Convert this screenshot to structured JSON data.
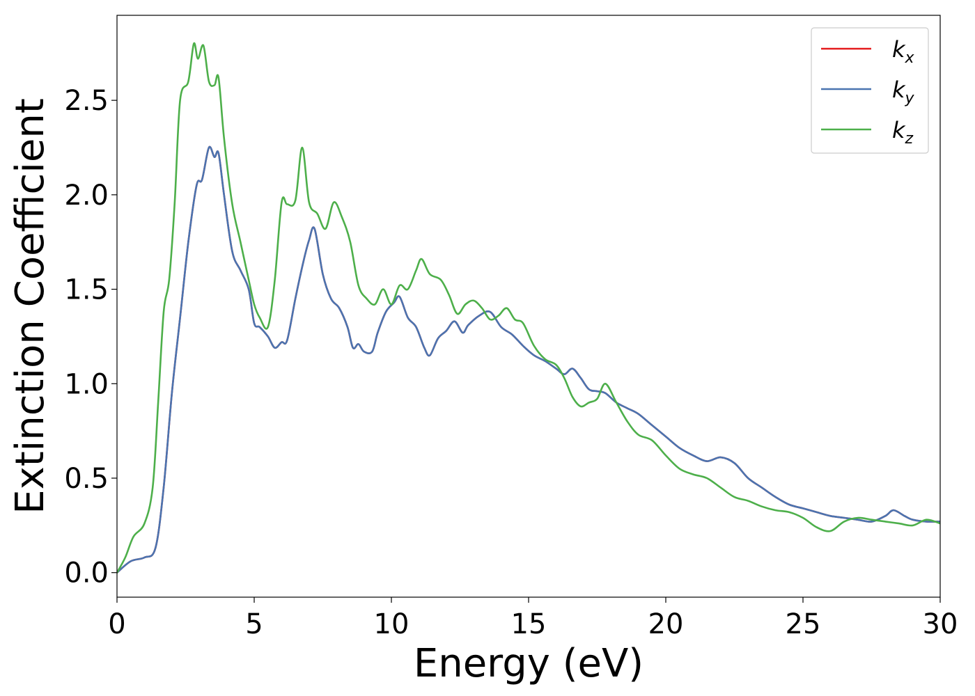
{
  "chart_data": {
    "type": "line",
    "title": "",
    "xlabel": "Energy (eV)",
    "ylabel": "Extinction Coefficient",
    "xlim": [
      0,
      30
    ],
    "ylim": [
      -0.13,
      2.95
    ],
    "xticks": [
      0,
      5,
      10,
      15,
      20,
      25,
      30
    ],
    "xtick_labels": [
      "0",
      "5",
      "10",
      "15",
      "20",
      "25",
      "30"
    ],
    "yticks": [
      0.0,
      0.5,
      1.0,
      1.5,
      2.0,
      2.5
    ],
    "ytick_labels": [
      "0.0",
      "0.5",
      "1.0",
      "1.5",
      "2.0",
      "2.5"
    ],
    "grid": false,
    "legend": {
      "placement": "top-right",
      "entries": [
        {
          "base": "k",
          "sub": "x",
          "color": "#e41a1c"
        },
        {
          "base": "k",
          "sub": "y",
          "color": "#4a74b0"
        },
        {
          "base": "k",
          "sub": "z",
          "color": "#4daf4a"
        }
      ]
    },
    "series": [
      {
        "name": "kx",
        "color": "#e41a1c",
        "x": [
          0,
          0.5,
          1.0,
          1.4,
          1.7,
          2.0,
          2.3,
          2.6,
          2.9,
          3.1,
          3.35,
          3.55,
          3.7,
          3.9,
          4.2,
          4.5,
          4.8,
          5.0,
          5.2,
          5.5,
          5.75,
          6.0,
          6.2,
          6.5,
          6.8,
          7.0,
          7.2,
          7.5,
          7.8,
          8.1,
          8.4,
          8.6,
          8.8,
          9.0,
          9.3,
          9.5,
          9.8,
          10.1,
          10.3,
          10.6,
          10.9,
          11.2,
          11.4,
          11.7,
          12.0,
          12.3,
          12.6,
          12.8,
          13.2,
          13.6,
          14.0,
          14.4,
          14.8,
          15.2,
          15.6,
          16.0,
          16.3,
          16.6,
          16.9,
          17.2,
          17.5,
          17.8,
          18.2,
          18.6,
          19.0,
          19.5,
          20.0,
          20.5,
          21.0,
          21.5,
          22.0,
          22.5,
          23.0,
          23.5,
          24.0,
          24.5,
          25.0,
          25.5,
          26.0,
          26.5,
          27.0,
          27.5,
          28.0,
          28.3,
          28.7,
          29.0,
          29.5,
          30.0
        ],
        "y": [
          0.0,
          0.06,
          0.08,
          0.13,
          0.45,
          0.95,
          1.35,
          1.75,
          2.05,
          2.08,
          2.25,
          2.2,
          2.22,
          2.0,
          1.7,
          1.6,
          1.5,
          1.32,
          1.3,
          1.25,
          1.19,
          1.22,
          1.23,
          1.45,
          1.65,
          1.76,
          1.82,
          1.58,
          1.45,
          1.4,
          1.3,
          1.19,
          1.21,
          1.17,
          1.17,
          1.27,
          1.38,
          1.43,
          1.46,
          1.35,
          1.3,
          1.19,
          1.15,
          1.24,
          1.28,
          1.33,
          1.27,
          1.31,
          1.36,
          1.38,
          1.3,
          1.26,
          1.2,
          1.15,
          1.12,
          1.08,
          1.05,
          1.08,
          1.03,
          0.97,
          0.96,
          0.95,
          0.9,
          0.87,
          0.84,
          0.78,
          0.72,
          0.66,
          0.62,
          0.59,
          0.61,
          0.58,
          0.5,
          0.45,
          0.4,
          0.36,
          0.34,
          0.32,
          0.3,
          0.29,
          0.28,
          0.27,
          0.3,
          0.33,
          0.3,
          0.28,
          0.27,
          0.27
        ]
      },
      {
        "name": "ky",
        "color": "#4a74b0",
        "x": [
          0,
          0.5,
          1.0,
          1.4,
          1.7,
          2.0,
          2.3,
          2.6,
          2.9,
          3.1,
          3.35,
          3.55,
          3.7,
          3.9,
          4.2,
          4.5,
          4.8,
          5.0,
          5.2,
          5.5,
          5.75,
          6.0,
          6.2,
          6.5,
          6.8,
          7.0,
          7.2,
          7.5,
          7.8,
          8.1,
          8.4,
          8.6,
          8.8,
          9.0,
          9.3,
          9.5,
          9.8,
          10.1,
          10.3,
          10.6,
          10.9,
          11.2,
          11.4,
          11.7,
          12.0,
          12.3,
          12.6,
          12.8,
          13.2,
          13.6,
          14.0,
          14.4,
          14.8,
          15.2,
          15.6,
          16.0,
          16.3,
          16.6,
          16.9,
          17.2,
          17.5,
          17.8,
          18.2,
          18.6,
          19.0,
          19.5,
          20.0,
          20.5,
          21.0,
          21.5,
          22.0,
          22.5,
          23.0,
          23.5,
          24.0,
          24.5,
          25.0,
          25.5,
          26.0,
          26.5,
          27.0,
          27.5,
          28.0,
          28.3,
          28.7,
          29.0,
          29.5,
          30.0
        ],
        "y": [
          0.0,
          0.06,
          0.08,
          0.13,
          0.45,
          0.95,
          1.35,
          1.75,
          2.05,
          2.08,
          2.25,
          2.2,
          2.22,
          2.0,
          1.7,
          1.6,
          1.5,
          1.32,
          1.3,
          1.25,
          1.19,
          1.22,
          1.23,
          1.45,
          1.65,
          1.76,
          1.82,
          1.58,
          1.45,
          1.4,
          1.3,
          1.19,
          1.21,
          1.17,
          1.17,
          1.27,
          1.38,
          1.43,
          1.46,
          1.35,
          1.3,
          1.19,
          1.15,
          1.24,
          1.28,
          1.33,
          1.27,
          1.31,
          1.36,
          1.38,
          1.3,
          1.26,
          1.2,
          1.15,
          1.12,
          1.08,
          1.05,
          1.08,
          1.03,
          0.97,
          0.96,
          0.95,
          0.9,
          0.87,
          0.84,
          0.78,
          0.72,
          0.66,
          0.62,
          0.59,
          0.61,
          0.58,
          0.5,
          0.45,
          0.4,
          0.36,
          0.34,
          0.32,
          0.3,
          0.29,
          0.28,
          0.27,
          0.3,
          0.33,
          0.3,
          0.28,
          0.27,
          0.27
        ]
      },
      {
        "name": "kz",
        "color": "#4daf4a",
        "x": [
          0,
          0.3,
          0.6,
          1.0,
          1.3,
          1.5,
          1.7,
          1.9,
          2.1,
          2.3,
          2.6,
          2.8,
          2.95,
          3.15,
          3.35,
          3.55,
          3.7,
          3.9,
          4.2,
          4.5,
          4.8,
          5.0,
          5.2,
          5.5,
          5.75,
          6.0,
          6.2,
          6.5,
          6.75,
          7.0,
          7.3,
          7.6,
          7.9,
          8.2,
          8.5,
          8.8,
          9.1,
          9.4,
          9.7,
          10.0,
          10.3,
          10.6,
          10.9,
          11.1,
          11.4,
          11.8,
          12.1,
          12.4,
          12.7,
          13.0,
          13.3,
          13.6,
          13.9,
          14.2,
          14.5,
          14.8,
          15.2,
          15.6,
          16.0,
          16.3,
          16.6,
          16.9,
          17.2,
          17.5,
          17.8,
          18.2,
          18.6,
          19.0,
          19.5,
          20.0,
          20.5,
          21.0,
          21.5,
          22.0,
          22.5,
          23.0,
          23.5,
          24.0,
          24.5,
          25.0,
          25.5,
          26.0,
          26.5,
          27.0,
          27.5,
          28.0,
          28.5,
          29.0,
          29.5,
          30.0
        ],
        "y": [
          0.0,
          0.08,
          0.19,
          0.26,
          0.45,
          0.9,
          1.38,
          1.55,
          1.95,
          2.5,
          2.6,
          2.8,
          2.72,
          2.79,
          2.6,
          2.58,
          2.62,
          2.3,
          1.95,
          1.75,
          1.55,
          1.42,
          1.35,
          1.3,
          1.55,
          1.96,
          1.95,
          1.97,
          2.25,
          1.96,
          1.9,
          1.82,
          1.96,
          1.88,
          1.75,
          1.52,
          1.45,
          1.42,
          1.5,
          1.42,
          1.52,
          1.5,
          1.6,
          1.66,
          1.58,
          1.55,
          1.47,
          1.37,
          1.42,
          1.44,
          1.4,
          1.34,
          1.36,
          1.4,
          1.34,
          1.32,
          1.2,
          1.13,
          1.1,
          1.03,
          0.93,
          0.88,
          0.9,
          0.92,
          1.0,
          0.9,
          0.8,
          0.73,
          0.7,
          0.62,
          0.55,
          0.52,
          0.5,
          0.45,
          0.4,
          0.38,
          0.35,
          0.33,
          0.32,
          0.29,
          0.24,
          0.22,
          0.27,
          0.29,
          0.28,
          0.27,
          0.26,
          0.25,
          0.28,
          0.26
        ]
      }
    ]
  }
}
